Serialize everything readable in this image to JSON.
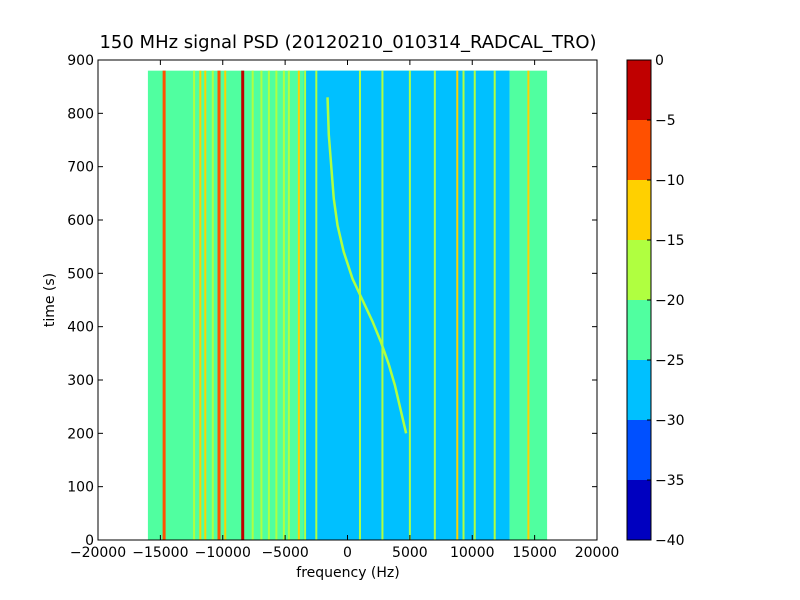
{
  "chart_data": {
    "type": "heatmap",
    "title": "150 MHz signal PSD (20120210_010314_RADCAL_TRO)",
    "xlabel": "frequency (Hz)",
    "ylabel": "time (s)",
    "xlim": [
      -20000,
      20000
    ],
    "ylim": [
      0,
      900
    ],
    "x_ticks": [
      -20000,
      -15000,
      -10000,
      -5000,
      0,
      5000,
      10000,
      15000,
      20000
    ],
    "x_tick_labels": [
      "−20000",
      "−15000",
      "−10000",
      "−5000",
      "0",
      "5000",
      "10000",
      "15000",
      "20000"
    ],
    "y_ticks": [
      0,
      100,
      200,
      300,
      400,
      500,
      600,
      700,
      800,
      900
    ],
    "y_tick_labels": [
      "0",
      "100",
      "200",
      "300",
      "400",
      "500",
      "600",
      "700",
      "800",
      "900"
    ],
    "data_extent": {
      "x": [
        -16000,
        16000
      ],
      "y": [
        0,
        880
      ]
    },
    "colorbar": {
      "levels": [
        -40,
        -35,
        -30,
        -25,
        -20,
        -15,
        -10,
        -5,
        0
      ],
      "tick_labels": [
        "−40",
        "−35",
        "−30",
        "−25",
        "−20",
        "−15",
        "−10",
        "−5",
        "0"
      ],
      "colors": [
        "#0000c0",
        "#0050ff",
        "#00c0ff",
        "#50ffa0",
        "#b0ff40",
        "#ffd000",
        "#ff5000",
        "#c00000"
      ]
    },
    "regions": [
      {
        "x": [
          -16000,
          13000
        ],
        "level": -22.5
      },
      {
        "x": [
          -3500,
          13000
        ],
        "level": -27.5
      },
      {
        "x": [
          13000,
          16000
        ],
        "level": -22.5
      }
    ],
    "spectral_lines": [
      {
        "x": -14700,
        "level": -7.5
      },
      {
        "x": -12300,
        "level": -17.5
      },
      {
        "x": -11800,
        "level": -12.5
      },
      {
        "x": -11400,
        "level": -12.5
      },
      {
        "x": -10800,
        "level": -17.5
      },
      {
        "x": -10300,
        "level": -7.5
      },
      {
        "x": -9800,
        "level": -12.5
      },
      {
        "x": -8400,
        "level": -2.5
      },
      {
        "x": -7600,
        "level": -17.5
      },
      {
        "x": -6900,
        "level": -17.5
      },
      {
        "x": -6300,
        "level": -17.5
      },
      {
        "x": -5700,
        "level": -17.5
      },
      {
        "x": -5100,
        "level": -17.5
      },
      {
        "x": -4700,
        "level": -17.5
      },
      {
        "x": -3900,
        "level": -12.5
      },
      {
        "x": -3400,
        "level": -17.5
      },
      {
        "x": -2500,
        "level": -17.5
      },
      {
        "x": 1000,
        "level": -17.5
      },
      {
        "x": 2800,
        "level": -17.5
      },
      {
        "x": 5000,
        "level": -17.5
      },
      {
        "x": 7000,
        "level": -17.5
      },
      {
        "x": 8800,
        "level": -12.5
      },
      {
        "x": 9300,
        "level": -17.5
      },
      {
        "x": 10200,
        "level": -17.5
      },
      {
        "x": 11800,
        "level": -17.5
      },
      {
        "x": 14500,
        "level": -12.5
      }
    ],
    "doppler_track": {
      "level": -17.5,
      "points": [
        [
          -1600,
          830
        ],
        [
          -1500,
          760
        ],
        [
          -1300,
          700
        ],
        [
          -1100,
          640
        ],
        [
          -800,
          590
        ],
        [
          -300,
          540
        ],
        [
          400,
          490
        ],
        [
          1200,
          450
        ],
        [
          2000,
          410
        ],
        [
          2700,
          370
        ],
        [
          3300,
          330
        ],
        [
          3800,
          290
        ],
        [
          4300,
          240
        ],
        [
          4700,
          200
        ]
      ]
    }
  }
}
